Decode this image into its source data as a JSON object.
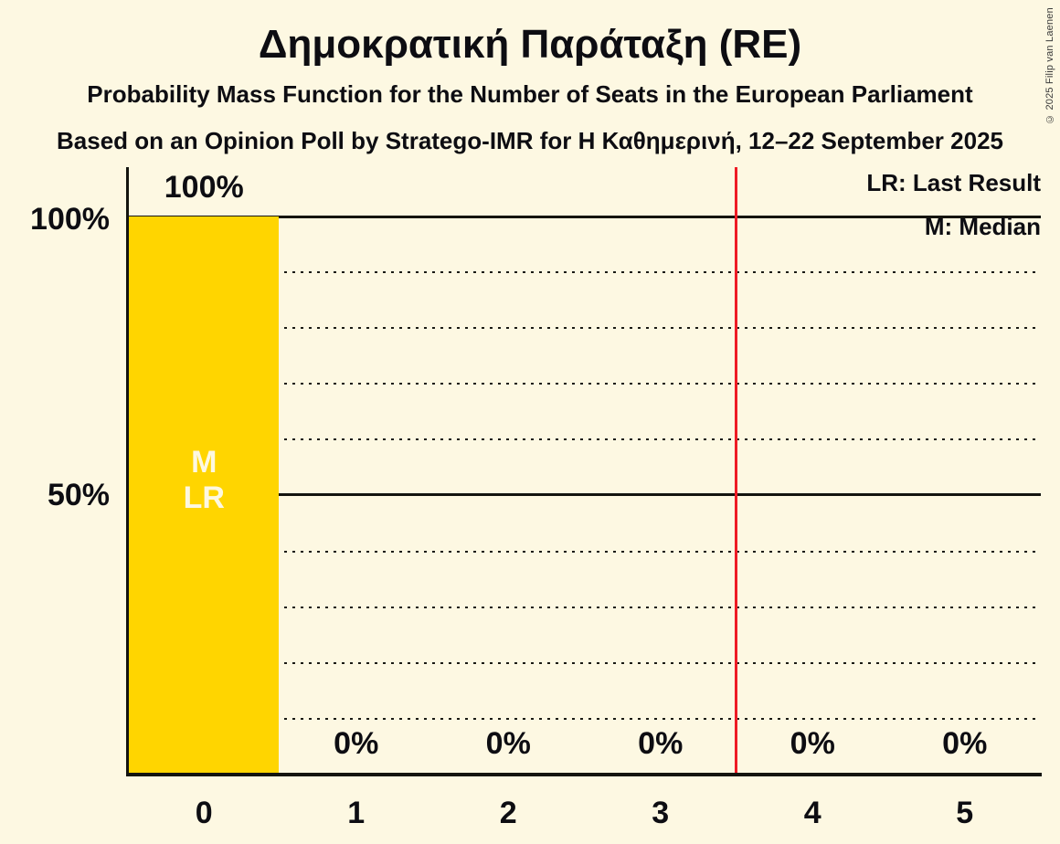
{
  "title": "Δημοκρατική Παράταξη (RE)",
  "subtitle1": "Probability Mass Function for the Number of Seats in the European Parliament",
  "subtitle2": "Based on an Opinion Poll by Stratego-IMR for Η Καθημερινή, 12–22 September 2025",
  "copyright": "© 2025 Filip van Laenen",
  "legend": {
    "last_result": "LR: Last Result",
    "median": "M: Median"
  },
  "y_axis": {
    "label_100": "100%",
    "label_50": "50%"
  },
  "annotations": {
    "median": "M",
    "last_result": "LR"
  },
  "colors": {
    "background": "#fdf8e2",
    "bar": "#ffd500",
    "red_line": "#ee1c25",
    "text": "#0d0d12",
    "bar_label_text": "#fdf8e2"
  },
  "chart_data": {
    "type": "bar",
    "title": "Δημοκρατική Παράταξη (RE)",
    "categories": [
      "0",
      "1",
      "2",
      "3",
      "4",
      "5"
    ],
    "values": [
      100,
      0,
      0,
      0,
      0,
      0
    ],
    "value_labels": [
      "100%",
      "0%",
      "0%",
      "0%",
      "0%",
      "0%"
    ],
    "ylim": [
      0,
      100
    ],
    "y_solid_gridlines": [
      100,
      50
    ],
    "y_dotted_gridlines": [
      90,
      80,
      70,
      60,
      40,
      30,
      20,
      10
    ],
    "y_tick_labels": [
      "100%",
      "50%"
    ],
    "red_vertical_line_x": 3.5,
    "median_seats": 0,
    "last_result_seats": 0,
    "legend_entries": [
      "LR: Last Result",
      "M: Median"
    ],
    "grid": "horizontal-only",
    "legend_position": "top-right"
  }
}
